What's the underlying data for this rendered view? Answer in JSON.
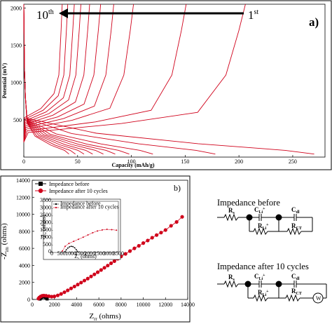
{
  "chart_data": [
    {
      "type": "line",
      "panel_label": "a)",
      "xlabel": "Capacity (mAh/g)",
      "ylabel": "Potential (mV)",
      "xlim": [
        0,
        280
      ],
      "ylim": [
        0,
        2050
      ],
      "x_ticks": [
        "0",
        "50",
        "100",
        "150",
        "200",
        "250"
      ],
      "y_ticks": [
        "500",
        "1000",
        "1500",
        "2000"
      ],
      "annotation": {
        "left": "10",
        "left_sup": "th",
        "right": "1",
        "right_sup": "st"
      },
      "color": "#d0021b",
      "series": [
        {
          "cycle": 1,
          "charge_capacity": 202,
          "discharge_capacity": 270
        },
        {
          "cycle": 2,
          "charge_capacity": 148,
          "discharge_capacity": 178
        },
        {
          "cycle": 3,
          "charge_capacity": 100,
          "discharge_capacity": 120
        },
        {
          "cycle": 4,
          "charge_capacity": 82,
          "discharge_capacity": 98
        },
        {
          "cycle": 5,
          "charge_capacity": 70,
          "discharge_capacity": 85
        },
        {
          "cycle": 6,
          "charge_capacity": 60,
          "discharge_capacity": 74
        },
        {
          "cycle": 7,
          "charge_capacity": 52,
          "discharge_capacity": 64
        },
        {
          "cycle": 8,
          "charge_capacity": 46,
          "discharge_capacity": 56
        },
        {
          "cycle": 9,
          "charge_capacity": 40,
          "discharge_capacity": 48
        },
        {
          "cycle": 10,
          "charge_capacity": 35,
          "discharge_capacity": 42
        }
      ]
    },
    {
      "type": "scatter",
      "panel_label": "b)",
      "xlabel_main": "Z",
      "xlabel_sub": "rr",
      "xlabel_unit": " (ohms)",
      "ylabel_pre": "-Z",
      "ylabel_sub": "im",
      "ylabel_unit": " (ohms)",
      "xlim": [
        0,
        14000
      ],
      "ylim": [
        0,
        14000
      ],
      "x_ticks": [
        "0",
        "2000",
        "4000",
        "6000",
        "8000",
        "10000",
        "12000",
        "14000"
      ],
      "y_ticks": [
        "0",
        "2000",
        "4000",
        "6000",
        "8000",
        "10000",
        "12000",
        "14000"
      ],
      "series": [
        {
          "name": "Impedance before",
          "color": "#000000",
          "x": [
            700,
            760,
            840,
            930,
            1020,
            1110,
            1200,
            1280,
            1340
          ],
          "y": [
            50,
            160,
            250,
            300,
            320,
            300,
            240,
            150,
            60
          ]
        },
        {
          "name": "Impedance after 10 cycles",
          "color": "#d0021b",
          "x": [
            560,
            640,
            760,
            900,
            1050,
            1250,
            1500,
            1750,
            2000,
            2300,
            2600,
            2900,
            3200,
            3500,
            3800,
            4100,
            4400,
            4700,
            5000,
            5300,
            5600,
            5900,
            6200,
            6500,
            6800,
            7100,
            7400,
            7700,
            8000,
            8400,
            8800,
            9200,
            9600,
            10000,
            10400,
            10800,
            11200,
            11600,
            12000,
            12500,
            13000,
            13500
          ],
          "y": [
            100,
            230,
            350,
            430,
            460,
            430,
            380,
            330,
            360,
            480,
            650,
            850,
            1070,
            1300,
            1520,
            1750,
            1980,
            2220,
            2450,
            2700,
            2950,
            3200,
            3460,
            3720,
            3980,
            4250,
            4500,
            4780,
            5050,
            5350,
            5680,
            6000,
            6300,
            6620,
            6920,
            7250,
            7560,
            7850,
            8150,
            8650,
            9100,
            9700
          ]
        }
      ],
      "inset": {
        "xlabel_main": "Z",
        "xlabel_sub": "rr",
        "xlabel_unit": " (ohms)",
        "ylabel_pre": "-Z",
        "ylabel_sub": "im",
        "ylabel_unit": " (ohms)",
        "xlim": [
          0,
          3500
        ],
        "ylim": [
          0,
          3500
        ],
        "x_ticks": [
          "0",
          "500",
          "1000",
          "1500",
          "2000",
          "2500",
          "3000",
          "3500"
        ],
        "y_ticks": [
          "0",
          "500",
          "1000",
          "1500",
          "2000",
          "2500",
          "3000",
          "3500"
        ],
        "series": [
          {
            "name": "Impedance before",
            "color": "#000000",
            "x": [
              700,
              760,
              840,
              930,
              1020,
              1110,
              1200,
              1280,
              1340
            ],
            "y": [
              60,
              180,
              300,
              380,
              420,
              400,
              320,
              200,
              80
            ]
          },
          {
            "name": "Impedance after 10 cycles",
            "color": "#d0021b",
            "x": [
              560,
              700,
              900,
              1150,
              1400,
              1650,
              1900,
              2150,
              2400,
              2650,
              2900,
              3150,
              3400
            ],
            "y": [
              100,
              420,
              620,
              760,
              900,
              1040,
              1200,
              1350,
              1470,
              1540,
              1580,
              1560,
              1520
            ]
          }
        ]
      }
    }
  ],
  "circuits": [
    {
      "title": "Impedance before",
      "labels": {
        "rs": "R",
        "rs_sub": "s",
        "cli": "C",
        "cli_sub": "Li",
        "cli_sup": "+",
        "rli": "R",
        "rli_sub": "Li",
        "rli_sup": "+",
        "cdl": "C",
        "cdl_sub": "dl",
        "rct": "R",
        "rct_sub": "CT"
      }
    },
    {
      "title": "Impedance after 10 cycles",
      "labels": {
        "rs": "R",
        "rs_sub": "s",
        "cli": "C",
        "cli_sub": "Li",
        "cli_sup": "+",
        "rli": "R",
        "rli_sub": "Li",
        "rli_sup": "+",
        "cdl": "C",
        "cdl_sub": "dl",
        "rct": "R",
        "rct_sub": "CT",
        "w": "W"
      }
    }
  ]
}
